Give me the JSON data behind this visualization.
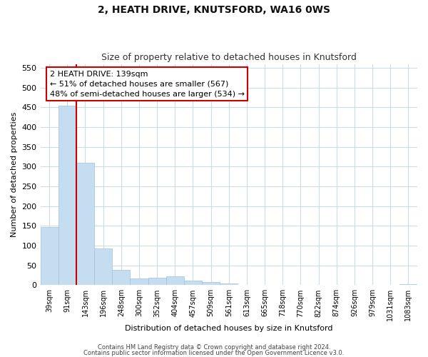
{
  "title": "2, HEATH DRIVE, KNUTSFORD, WA16 0WS",
  "subtitle": "Size of property relative to detached houses in Knutsford",
  "xlabel": "Distribution of detached houses by size in Knutsford",
  "ylabel": "Number of detached properties",
  "bar_labels": [
    "39sqm",
    "91sqm",
    "143sqm",
    "196sqm",
    "248sqm",
    "300sqm",
    "352sqm",
    "404sqm",
    "457sqm",
    "509sqm",
    "561sqm",
    "613sqm",
    "665sqm",
    "718sqm",
    "770sqm",
    "822sqm",
    "874sqm",
    "926sqm",
    "979sqm",
    "1031sqm",
    "1083sqm"
  ],
  "bar_values": [
    147,
    455,
    310,
    93,
    38,
    16,
    18,
    23,
    11,
    7,
    4,
    1,
    0,
    0,
    0,
    0,
    0,
    0,
    0,
    0,
    3
  ],
  "bar_color": "#c5ddf0",
  "bar_edge_color": "#a0c0e0",
  "highlight_bar_index": 1,
  "highlight_line_color": "#cc0000",
  "ylim": [
    0,
    560
  ],
  "yticks": [
    0,
    50,
    100,
    150,
    200,
    250,
    300,
    350,
    400,
    450,
    500,
    550
  ],
  "annotation_title": "2 HEATH DRIVE: 139sqm",
  "annotation_line1": "← 51% of detached houses are smaller (567)",
  "annotation_line2": "48% of semi-detached houses are larger (534) →",
  "footer1": "Contains HM Land Registry data © Crown copyright and database right 2024.",
  "footer2": "Contains public sector information licensed under the Open Government Licence v3.0.",
  "bg_color": "#ffffff",
  "grid_color": "#ccdde8",
  "annotation_box_color": "#ffffff",
  "annotation_box_edge": "#cc0000",
  "title_fontsize": 10,
  "subtitle_fontsize": 9,
  "ylabel_fontsize": 8,
  "xlabel_fontsize": 8,
  "ytick_fontsize": 8,
  "xtick_fontsize": 7,
  "footer_fontsize": 6,
  "annotation_fontsize": 8
}
